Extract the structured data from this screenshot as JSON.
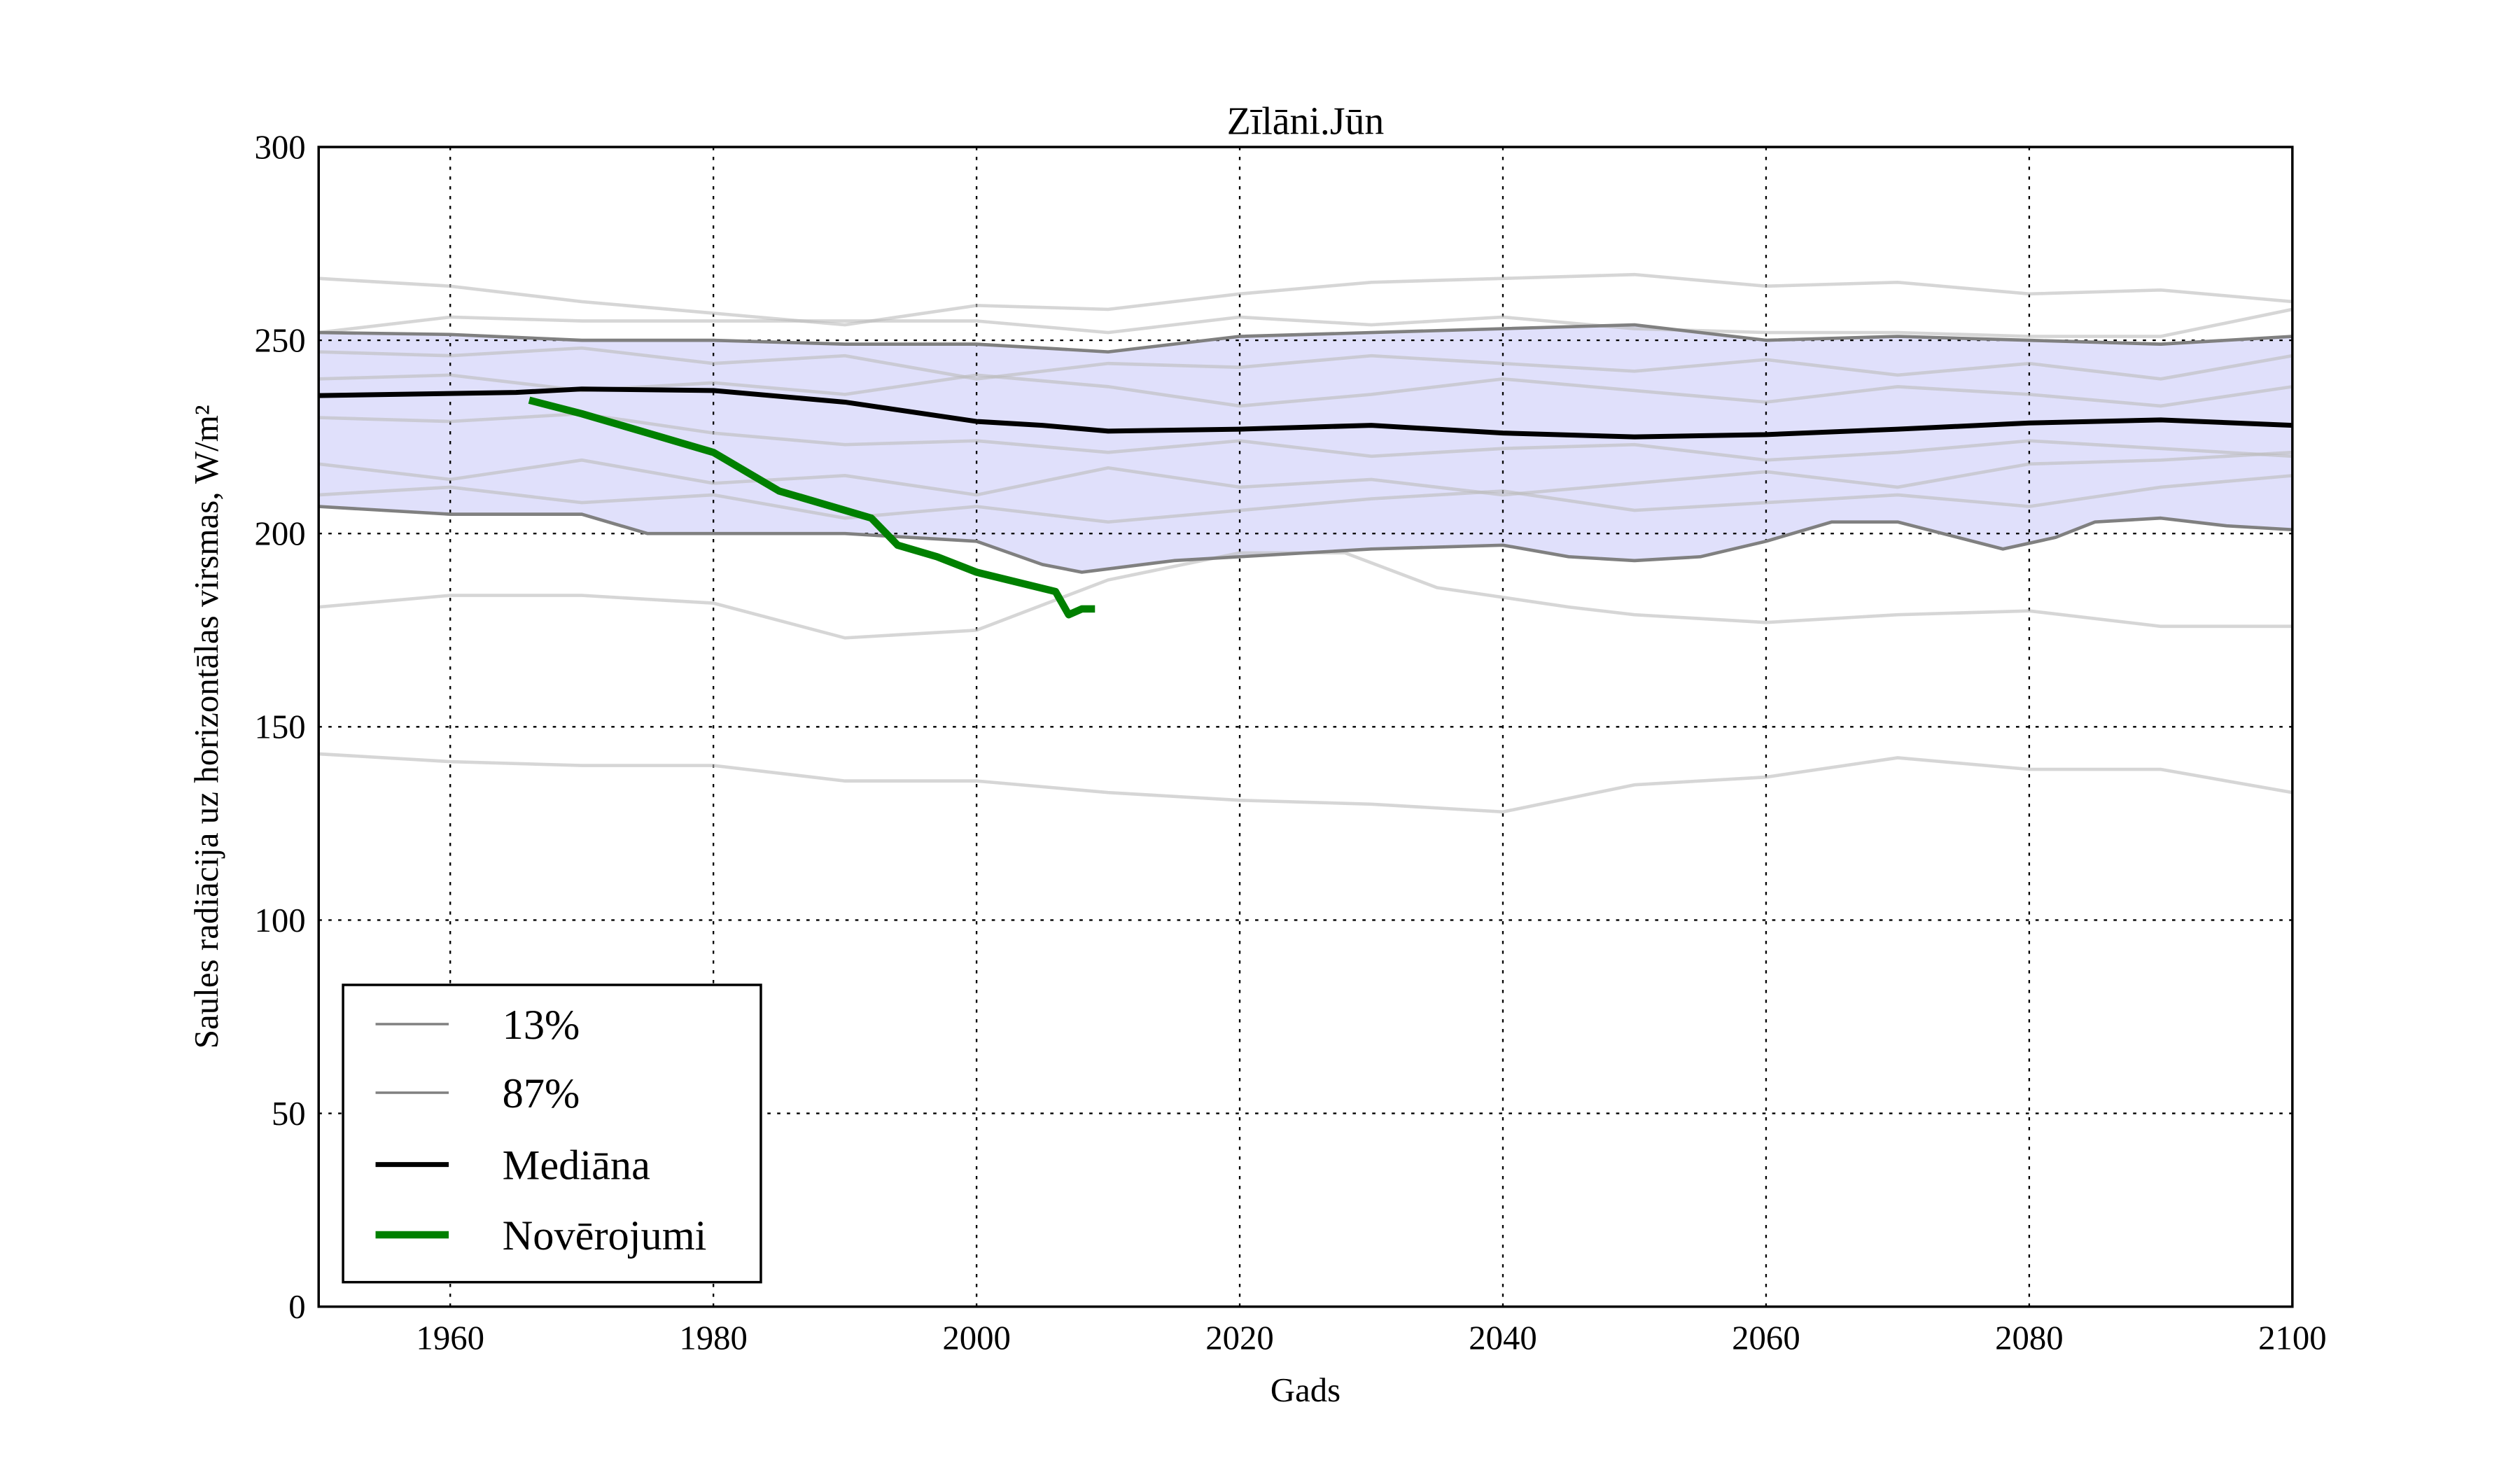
{
  "chart_data": {
    "type": "line",
    "title": "Zīlāni.Jūn",
    "xlabel": "Gads",
    "ylabel": "Saules radiācija uz horizontālas virsmas, W/m²",
    "xlim": [
      1950,
      2100
    ],
    "ylim": [
      0,
      300
    ],
    "xticks": [
      1960,
      1980,
      2000,
      2020,
      2040,
      2060,
      2080,
      2100
    ],
    "yticks": [
      0,
      50,
      100,
      150,
      200,
      250,
      300
    ],
    "grid": true,
    "legend_position": "lower-left",
    "legend": [
      "13%",
      "87%",
      "Mediāna",
      "Novērojumi"
    ],
    "band_color": "#e0e0fb",
    "series": [
      {
        "name": "13%",
        "color": "#808080",
        "x": [
          1950,
          1960,
          1970,
          1975,
          1980,
          1990,
          2000,
          2005,
          2008,
          2015,
          2020,
          2030,
          2040,
          2045,
          2050,
          2055,
          2060,
          2065,
          2070,
          2078,
          2082,
          2085,
          2090,
          2095,
          2100
        ],
        "values": [
          207,
          205,
          205,
          200,
          200,
          200,
          198,
          192,
          190,
          193,
          194,
          196,
          197,
          194,
          193,
          194,
          198,
          203,
          203,
          196,
          199,
          203,
          204,
          202,
          201
        ]
      },
      {
        "name": "87%",
        "color": "#808080",
        "x": [
          1950,
          1960,
          1970,
          1980,
          1990,
          2000,
          2010,
          2020,
          2030,
          2040,
          2050,
          2060,
          2070,
          2080,
          2090,
          2100
        ],
        "values": [
          252,
          251.5,
          250,
          250,
          249,
          249,
          247,
          251,
          252,
          253,
          254,
          250,
          251,
          250,
          249,
          251
        ]
      },
      {
        "name": "Mediāna",
        "color": "#000000",
        "x": [
          1950,
          1965,
          1970,
          1980,
          1990,
          2000,
          2005,
          2010,
          2020,
          2030,
          2040,
          2050,
          2060,
          2070,
          2080,
          2090,
          2100
        ],
        "values": [
          235.7,
          236.5,
          237.4,
          237,
          234,
          229,
          228,
          226.5,
          227,
          228,
          226,
          225,
          225.6,
          227,
          228.6,
          229.4,
          228
        ]
      },
      {
        "name": "Novērojumi",
        "color": "#008000",
        "x": [
          1966,
          1970,
          1975,
          1980,
          1985,
          1990,
          1992,
          1994,
          1997,
          2000,
          2006,
          2007,
          2008,
          2009
        ],
        "values": [
          234.5,
          231,
          226,
          221,
          211,
          206,
          204,
          197,
          194,
          190,
          185,
          179,
          180.5,
          180.5
        ]
      }
    ],
    "ensemble": [
      {
        "x": [
          1950,
          1960,
          1970,
          1980,
          1990,
          2000,
          2010,
          2020,
          2030,
          2040,
          2050,
          2060,
          2070,
          2080,
          2090,
          2100
        ],
        "values": [
          266,
          264,
          260,
          257,
          254,
          259,
          258,
          262,
          265,
          266,
          267,
          264,
          265,
          262,
          263,
          260
        ]
      },
      {
        "x": [
          1950,
          1960,
          1970,
          1980,
          1990,
          2000,
          2010,
          2020,
          2030,
          2040,
          2050,
          2060,
          2070,
          2080,
          2090,
          2100
        ],
        "values": [
          252,
          256,
          255,
          255,
          255,
          255,
          252,
          256,
          254,
          256,
          253,
          252,
          252,
          251,
          251,
          258
        ]
      },
      {
        "x": [
          1950,
          1960,
          1970,
          1980,
          1990,
          2000,
          2010,
          2020,
          2030,
          2040,
          2050,
          2060,
          2070,
          2080,
          2090,
          2100
        ],
        "values": [
          247,
          246,
          248,
          244,
          246,
          240,
          244,
          243,
          246,
          244,
          242,
          245,
          241,
          244,
          240,
          246
        ]
      },
      {
        "x": [
          1950,
          1960,
          1970,
          1980,
          1990,
          2000,
          2010,
          2020,
          2030,
          2040,
          2050,
          2060,
          2070,
          2080,
          2090,
          2100
        ],
        "values": [
          240,
          241,
          237,
          239,
          236,
          241,
          238,
          233,
          236,
          240,
          237,
          234,
          238,
          236,
          233,
          238
        ]
      },
      {
        "x": [
          1950,
          1960,
          1970,
          1980,
          1990,
          2000,
          2010,
          2020,
          2030,
          2040,
          2050,
          2060,
          2070,
          2080,
          2090,
          2100
        ],
        "values": [
          230,
          229,
          231,
          226,
          223,
          224,
          221,
          224,
          220,
          222,
          223,
          219,
          221,
          224,
          222,
          220
        ]
      },
      {
        "x": [
          1950,
          1960,
          1970,
          1980,
          1990,
          2000,
          2010,
          2020,
          2030,
          2040,
          2050,
          2060,
          2070,
          2080,
          2090,
          2100
        ],
        "values": [
          218,
          214,
          219,
          213,
          215,
          210,
          217,
          212,
          214,
          210,
          213,
          216,
          212,
          218,
          219,
          221
        ]
      },
      {
        "x": [
          1950,
          1960,
          1970,
          1980,
          1990,
          2000,
          2010,
          2020,
          2030,
          2040,
          2050,
          2060,
          2070,
          2080,
          2090,
          2100
        ],
        "values": [
          210,
          212,
          208,
          210,
          204,
          207,
          203,
          206,
          209,
          211,
          206,
          208,
          210,
          207,
          212,
          215
        ]
      },
      {
        "x": [
          1950,
          1960,
          1970,
          1980,
          1990,
          2000,
          2010,
          2020,
          2028,
          2035,
          2045,
          2050,
          2060,
          2070,
          2080,
          2090,
          2100
        ],
        "values": [
          181,
          184,
          184,
          182,
          173,
          175,
          188,
          195,
          195,
          186,
          181,
          179,
          177,
          179,
          180,
          176,
          176
        ]
      },
      {
        "x": [
          1950,
          1960,
          1970,
          1980,
          1990,
          2000,
          2010,
          2020,
          2030,
          2040,
          2050,
          2060,
          2070,
          2080,
          2090,
          2100
        ],
        "values": [
          143,
          141,
          140,
          140,
          136,
          136,
          133,
          131,
          130,
          128,
          135,
          137,
          142,
          139,
          139,
          133
        ]
      }
    ]
  }
}
